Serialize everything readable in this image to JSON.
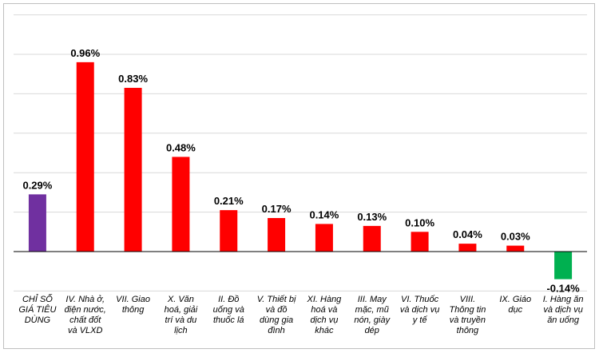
{
  "chart_data": {
    "type": "bar",
    "title": "",
    "xlabel": "",
    "ylabel": "",
    "ylim": [
      -0.2,
      1.2
    ],
    "grid": true,
    "gridlines": [
      -0.2,
      0.2,
      0.4,
      0.6,
      0.8,
      1.0,
      1.2
    ],
    "categories": [
      [
        "CHỈ SỐ",
        "GIÁ TIÊU",
        "DÙNG"
      ],
      [
        "IV. Nhà ở,",
        "điện nước,",
        "chất đốt",
        "và VLXD"
      ],
      [
        "VII. Giao",
        "thông"
      ],
      [
        "X. Văn",
        "hoá, giải",
        "trí và du",
        "lịch"
      ],
      [
        "II. Đồ",
        "uống và",
        "thuốc lá"
      ],
      [
        "V. Thiết bị",
        "và đồ",
        "dùng gia",
        "đình"
      ],
      [
        "XI. Hàng",
        "hoá và",
        "dịch vụ",
        "khác"
      ],
      [
        "III. May",
        "mặc, mũ",
        "nón, giày",
        "dép"
      ],
      [
        "VI. Thuốc",
        "và dịch vụ",
        "y tế"
      ],
      [
        "VIII.",
        "Thông tin",
        "và truyền",
        "thông"
      ],
      [
        "IX. Giáo",
        "dục"
      ],
      [
        "I. Hàng ăn",
        "và dịch vụ",
        "ăn uống"
      ]
    ],
    "values": [
      0.29,
      0.96,
      0.83,
      0.48,
      0.21,
      0.17,
      0.14,
      0.13,
      0.1,
      0.04,
      0.03,
      -0.14
    ],
    "value_labels": [
      "0.29%",
      "0.96%",
      "0.83%",
      "0.48%",
      "0.21%",
      "0.17%",
      "0.14%",
      "0.13%",
      "0.10%",
      "0.04%",
      "0.03%",
      "-0.14%"
    ],
    "colors": [
      "#7030a0",
      "#ff0000",
      "#ff0000",
      "#ff0000",
      "#ff0000",
      "#ff0000",
      "#ff0000",
      "#ff0000",
      "#ff0000",
      "#ff0000",
      "#ff0000",
      "#00b050"
    ]
  }
}
